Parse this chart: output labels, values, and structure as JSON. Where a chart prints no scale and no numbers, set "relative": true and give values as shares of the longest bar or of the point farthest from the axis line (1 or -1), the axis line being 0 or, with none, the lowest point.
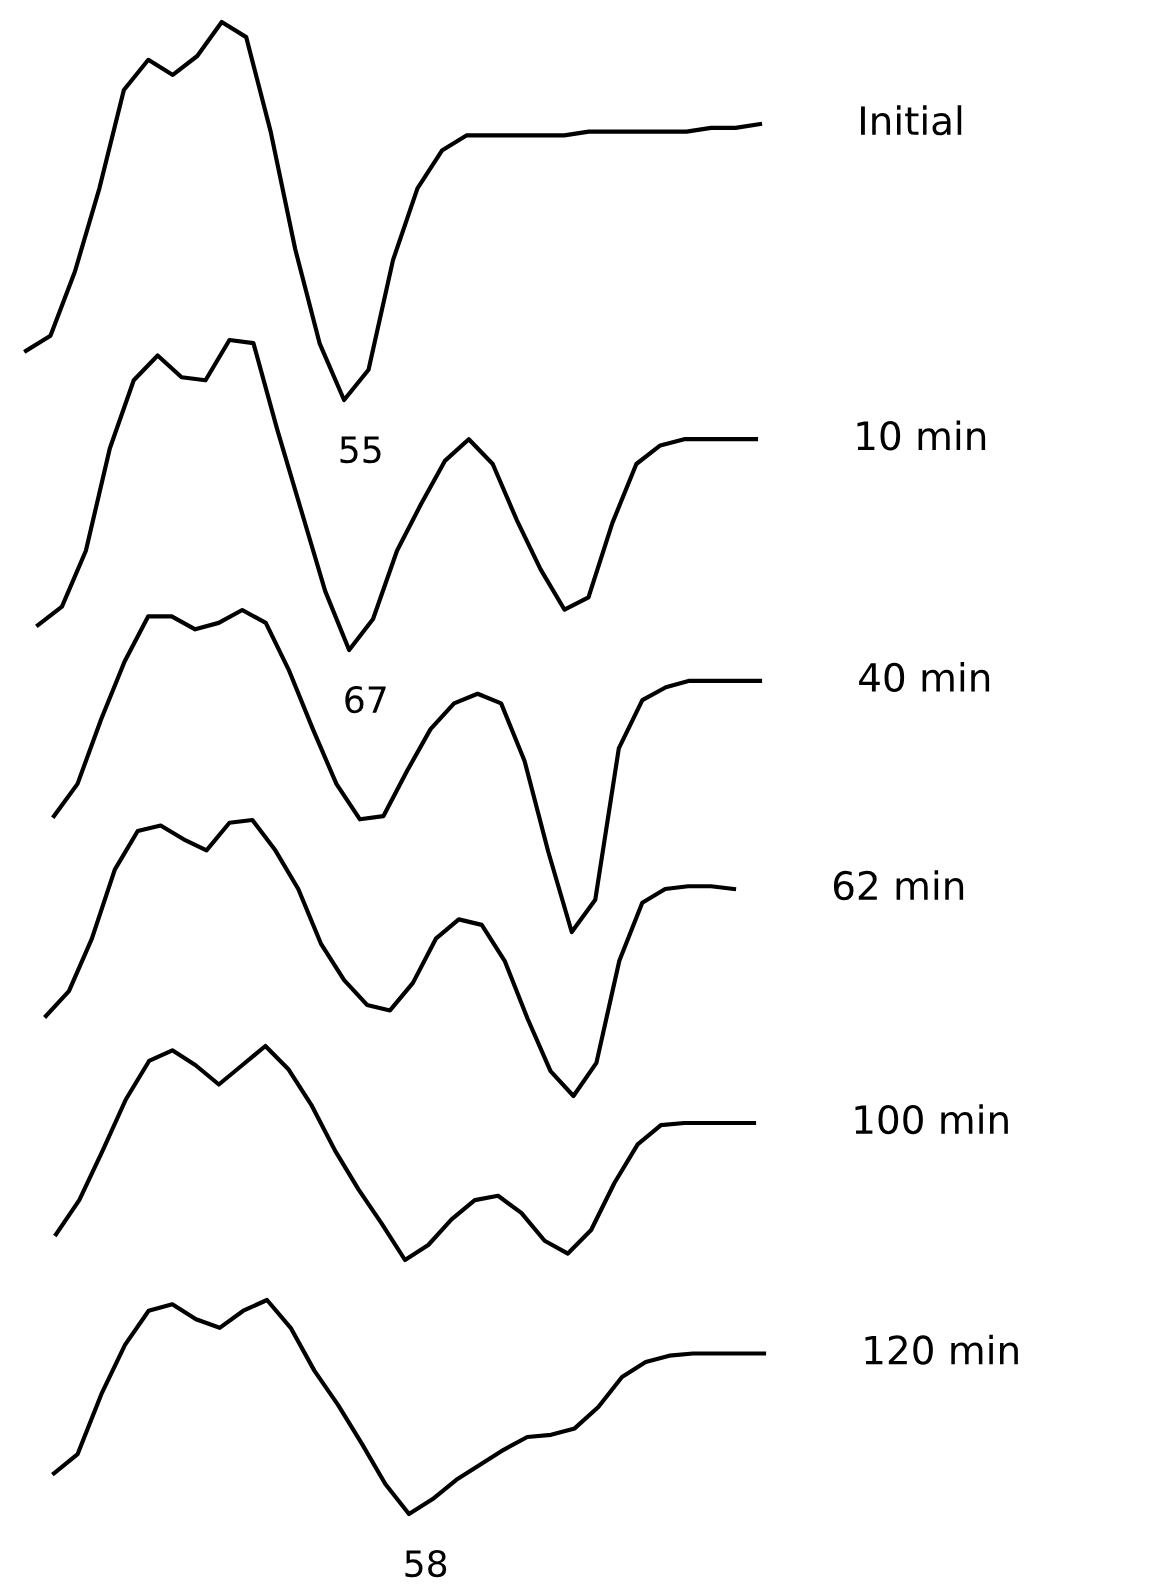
{
  "chart_data": [
    {
      "type": "line",
      "relative": true,
      "categories": [
        null,
        null,
        null,
        null,
        null,
        null,
        null,
        null,
        null,
        null,
        null,
        null,
        null,
        null,
        null,
        null,
        null,
        null,
        null,
        null,
        null,
        null,
        null,
        null,
        null,
        null,
        null,
        null,
        null,
        null,
        null
      ],
      "annotations": [
        "55"
      ],
      "series": [
        {
          "name": "Initial",
          "color": "#000000",
          "values": [
            0.13,
            0.17,
            0.34,
            0.56,
            0.82,
            0.9,
            0.86,
            0.91,
            1,
            0.96,
            0.71,
            0.4,
            0.15,
            0,
            0.08,
            0.37,
            0.56,
            0.66,
            0.7,
            0.7,
            0.7,
            0.7,
            0.7,
            0.71,
            0.71,
            0.71,
            0.71,
            0.71,
            0.72,
            0.72,
            0.73
          ]
        }
      ]
    },
    {
      "type": "line",
      "relative": true,
      "categories": [
        null,
        null,
        null,
        null,
        null,
        null,
        null,
        null,
        null,
        null,
        null,
        null,
        null,
        null,
        null,
        null,
        null,
        null,
        null,
        null,
        null,
        null,
        null,
        null,
        null,
        null,
        null,
        null,
        null,
        null,
        null
      ],
      "annotations": [
        "67"
      ],
      "series": [
        {
          "name": "10 min",
          "color": "#000000",
          "values": [
            0.08,
            0.14,
            0.32,
            0.65,
            0.87,
            0.95,
            0.88,
            0.87,
            1,
            0.99,
            0.71,
            0.45,
            0.19,
            0,
            0.1,
            0.32,
            0.47,
            0.61,
            0.68,
            0.6,
            0.42,
            0.26,
            0.13,
            0.17,
            0.41,
            0.6,
            0.66,
            0.68,
            0.68,
            0.68,
            0.68
          ]
        }
      ]
    },
    {
      "type": "line",
      "relative": true,
      "categories": [
        null,
        null,
        null,
        null,
        null,
        null,
        null,
        null,
        null,
        null,
        null,
        null,
        null,
        null,
        null,
        null,
        null,
        null,
        null,
        null,
        null,
        null,
        null,
        null,
        null,
        null,
        null,
        null,
        null,
        null,
        null
      ],
      "series": [
        {
          "name": "40 min",
          "color": "#000000",
          "values": [
            0.36,
            0.46,
            0.66,
            0.84,
            0.98,
            0.98,
            0.94,
            0.96,
            1,
            0.96,
            0.81,
            0.63,
            0.46,
            0.35,
            0.36,
            0.5,
            0.63,
            0.71,
            0.74,
            0.71,
            0.53,
            0.25,
            0,
            0.1,
            0.57,
            0.72,
            0.76,
            0.78,
            0.78,
            0.78,
            0.78
          ]
        }
      ]
    },
    {
      "type": "line",
      "relative": true,
      "categories": [
        null,
        null,
        null,
        null,
        null,
        null,
        null,
        null,
        null,
        null,
        null,
        null,
        null,
        null,
        null,
        null,
        null,
        null,
        null,
        null,
        null,
        null,
        null,
        null,
        null,
        null,
        null,
        null,
        null,
        null,
        null
      ],
      "series": [
        {
          "name": "62 min",
          "color": "#000000",
          "values": [
            0.29,
            0.38,
            0.57,
            0.82,
            0.96,
            0.98,
            0.93,
            0.89,
            0.99,
            1,
            0.89,
            0.75,
            0.55,
            0.42,
            0.33,
            0.31,
            0.41,
            0.57,
            0.64,
            0.62,
            0.49,
            0.28,
            0.09,
            0,
            0.12,
            0.49,
            0.7,
            0.75,
            0.76,
            0.76,
            0.75
          ]
        }
      ]
    },
    {
      "type": "line",
      "relative": true,
      "categories": [
        null,
        null,
        null,
        null,
        null,
        null,
        null,
        null,
        null,
        null,
        null,
        null,
        null,
        null,
        null,
        null,
        null,
        null,
        null,
        null,
        null,
        null,
        null,
        null,
        null,
        null,
        null,
        null,
        null,
        null,
        null
      ],
      "series": [
        {
          "name": "100 min",
          "color": "#000000",
          "values": [
            0.12,
            0.28,
            0.51,
            0.75,
            0.93,
            0.98,
            0.91,
            0.82,
            0.91,
            1,
            0.89,
            0.72,
            0.51,
            0.33,
            0.17,
            0,
            0.07,
            0.19,
            0.28,
            0.3,
            0.22,
            0.09,
            0.03,
            0.14,
            0.36,
            0.54,
            0.63,
            0.64,
            0.64,
            0.64,
            0.64
          ]
        }
      ]
    },
    {
      "type": "line",
      "relative": true,
      "categories": [
        null,
        null,
        null,
        null,
        null,
        null,
        null,
        null,
        null,
        null,
        null,
        null,
        null,
        null,
        null,
        null,
        null,
        null,
        null,
        null,
        null,
        null,
        null,
        null,
        null,
        null,
        null,
        null,
        null,
        null,
        null
      ],
      "annotations": [
        "58"
      ],
      "series": [
        {
          "name": "120 min",
          "color": "#000000",
          "values": [
            0.19,
            0.28,
            0.56,
            0.79,
            0.95,
            0.98,
            0.91,
            0.87,
            0.95,
            1,
            0.87,
            0.67,
            0.51,
            0.33,
            0.14,
            0,
            0.07,
            0.16,
            0.23,
            0.3,
            0.36,
            0.37,
            0.4,
            0.5,
            0.64,
            0.71,
            0.74,
            0.75,
            0.75,
            0.75,
            0.75
          ]
        }
      ]
    }
  ]
}
